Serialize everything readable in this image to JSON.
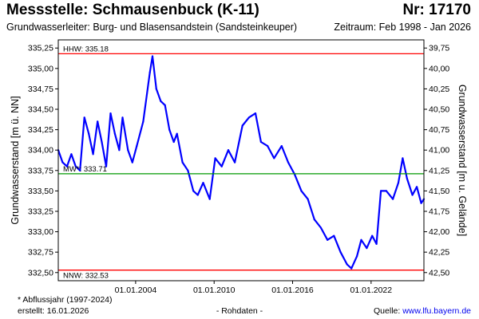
{
  "header": {
    "title": "Messstelle: Schmausenbuck (K-11)",
    "number": "Nr: 17170",
    "aquifer": "Grundwasserleiter:  Burg- und Blasensandstein (Sandsteinkeuper)",
    "period": "Zeitraum: Feb 1998 - Jan 2026"
  },
  "footer": {
    "footnote": "* Abflussjahr (1997-2024)",
    "created": "erstellt:  16.01.2026",
    "rohdaten": "- Rohdaten -",
    "source_label": "Quelle: ",
    "source_url": "www.lfu.bayern.de"
  },
  "colors": {
    "series": "#0000ff",
    "extreme_lines": "#ff0000",
    "mean_line": "#009900",
    "source_link": "#0000ee"
  },
  "chart_data": {
    "type": "line",
    "title": "",
    "xlabel": "",
    "ylabel": "Grundwasserstand [m ü. NN]",
    "ylabel_right": "Grundwasserstand [m u. Gelände]",
    "xlim": [
      "1998-02-01",
      "2026-01-15"
    ],
    "ylim": [
      332.4,
      335.35
    ],
    "ylim_right": [
      42.6,
      39.65
    ],
    "x_ticks": [
      {
        "date": "2004-01-01",
        "label": "01.01.2004"
      },
      {
        "date": "2010-01-01",
        "label": "01.01.2010"
      },
      {
        "date": "2016-01-01",
        "label": "01.01.2016"
      },
      {
        "date": "2022-01-01",
        "label": "01.01.2022"
      }
    ],
    "y_ticks": [
      332.5,
      332.75,
      333.0,
      333.25,
      333.5,
      333.75,
      334.0,
      334.25,
      334.5,
      334.75,
      335.0,
      335.25
    ],
    "y_tick_labels": [
      "332,50",
      "332,75",
      "333,00",
      "333,25",
      "333,50",
      "333,75",
      "334,00",
      "334,25",
      "334,50",
      "334,75",
      "335,00",
      "335,25"
    ],
    "y_right_ticks": [
      42.5,
      42.25,
      42.0,
      41.75,
      41.5,
      41.25,
      41.0,
      40.75,
      40.5,
      40.25,
      40.0,
      39.75
    ],
    "y_right_tick_labels": [
      "42,50",
      "42,25",
      "42,00",
      "41,75",
      "41,50",
      "41,25",
      "41,00",
      "40,75",
      "40,50",
      "40,25",
      "40,00",
      "39,75"
    ],
    "grid": false,
    "reference_lines": [
      {
        "name": "HHW",
        "label": "HHW: 335.18",
        "value": 335.18,
        "color": "#ff0000"
      },
      {
        "name": "MW",
        "label": "MW*: 333.71",
        "value": 333.71,
        "color": "#009900"
      },
      {
        "name": "NNW",
        "label": "NNW: 332.53",
        "value": 332.53,
        "color": "#ff0000"
      }
    ],
    "series": [
      {
        "color": "#0000ff",
        "points": [
          [
            "1998-02-01",
            334.0
          ],
          [
            "1998-06-01",
            333.85
          ],
          [
            "1998-10-01",
            333.8
          ],
          [
            "1999-02-01",
            333.95
          ],
          [
            "1999-06-01",
            333.8
          ],
          [
            "1999-10-01",
            333.75
          ],
          [
            "2000-02-01",
            334.4
          ],
          [
            "2000-06-01",
            334.2
          ],
          [
            "2000-10-01",
            333.95
          ],
          [
            "2001-02-01",
            334.35
          ],
          [
            "2001-06-01",
            334.1
          ],
          [
            "2001-10-01",
            333.8
          ],
          [
            "2002-02-01",
            334.45
          ],
          [
            "2002-06-01",
            334.2
          ],
          [
            "2002-10-01",
            334.0
          ],
          [
            "2003-01-01",
            334.4
          ],
          [
            "2003-06-01",
            334.0
          ],
          [
            "2003-10-01",
            333.85
          ],
          [
            "2004-02-01",
            334.05
          ],
          [
            "2004-08-01",
            334.35
          ],
          [
            "2005-02-01",
            334.95
          ],
          [
            "2005-04-15",
            335.15
          ],
          [
            "2005-08-01",
            334.75
          ],
          [
            "2005-12-01",
            334.6
          ],
          [
            "2006-04-01",
            334.55
          ],
          [
            "2006-08-01",
            334.25
          ],
          [
            "2006-12-01",
            334.1
          ],
          [
            "2007-03-01",
            334.2
          ],
          [
            "2007-08-01",
            333.85
          ],
          [
            "2008-01-01",
            333.75
          ],
          [
            "2008-06-01",
            333.5
          ],
          [
            "2008-10-01",
            333.45
          ],
          [
            "2009-03-01",
            333.6
          ],
          [
            "2009-09-01",
            333.4
          ],
          [
            "2010-02-01",
            333.9
          ],
          [
            "2010-08-01",
            333.8
          ],
          [
            "2011-02-01",
            334.0
          ],
          [
            "2011-08-01",
            333.85
          ],
          [
            "2012-03-01",
            334.3
          ],
          [
            "2012-09-01",
            334.4
          ],
          [
            "2013-03-01",
            334.45
          ],
          [
            "2013-08-01",
            334.1
          ],
          [
            "2014-02-01",
            334.05
          ],
          [
            "2014-08-01",
            333.9
          ],
          [
            "2015-03-01",
            334.05
          ],
          [
            "2015-09-01",
            333.85
          ],
          [
            "2016-03-01",
            333.7
          ],
          [
            "2016-09-01",
            333.5
          ],
          [
            "2017-03-01",
            333.4
          ],
          [
            "2017-09-01",
            333.15
          ],
          [
            "2018-03-01",
            333.05
          ],
          [
            "2018-09-01",
            332.9
          ],
          [
            "2019-03-01",
            332.95
          ],
          [
            "2019-09-01",
            332.75
          ],
          [
            "2020-03-01",
            332.6
          ],
          [
            "2020-07-01",
            332.55
          ],
          [
            "2020-12-01",
            332.7
          ],
          [
            "2021-04-01",
            332.9
          ],
          [
            "2021-09-01",
            332.8
          ],
          [
            "2022-02-01",
            332.95
          ],
          [
            "2022-06-01",
            332.85
          ],
          [
            "2022-10-01",
            333.5
          ],
          [
            "2023-03-01",
            333.5
          ],
          [
            "2023-09-01",
            333.4
          ],
          [
            "2024-02-01",
            333.6
          ],
          [
            "2024-06-01",
            333.9
          ],
          [
            "2024-10-01",
            333.65
          ],
          [
            "2025-03-01",
            333.45
          ],
          [
            "2025-07-01",
            333.55
          ],
          [
            "2025-11-01",
            333.35
          ],
          [
            "2026-01-15",
            333.4
          ]
        ]
      }
    ]
  }
}
